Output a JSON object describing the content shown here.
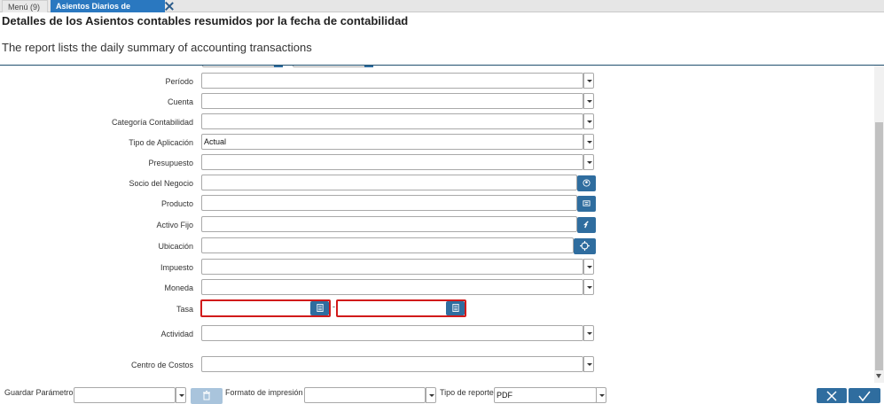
{
  "tabs": [
    {
      "label": "Menú (9)"
    },
    {
      "label": "Asientos Diarios de Contabi..."
    }
  ],
  "header": {
    "title": "Detalles de los Asientos contables resumidos por la fecha de contabilidad",
    "description": "The report lists the daily summary of accounting transactions"
  },
  "form": {
    "periodo": {
      "label": "Período",
      "value": ""
    },
    "cuenta": {
      "label": "Cuenta",
      "value": ""
    },
    "categoria": {
      "label": "Categoría Contabilidad",
      "value": ""
    },
    "tipo_aplicacion": {
      "label": "Tipo de Aplicación",
      "value": "Actual"
    },
    "presupuesto": {
      "label": "Presupuesto",
      "value": ""
    },
    "socio": {
      "label": "Socio del Negocio",
      "value": ""
    },
    "producto": {
      "label": "Producto",
      "value": ""
    },
    "activo_fijo": {
      "label": "Activo Fijo",
      "value": ""
    },
    "ubicacion": {
      "label": "Ubicación",
      "value": ""
    },
    "impuesto": {
      "label": "Impuesto",
      "value": ""
    },
    "moneda": {
      "label": "Moneda",
      "value": ""
    },
    "tasa": {
      "label": "Tasa",
      "from": "",
      "to": "",
      "separator": "-"
    },
    "actividad": {
      "label": "Actividad",
      "value": ""
    },
    "centro_costos": {
      "label": "Centro de Costos",
      "value": ""
    }
  },
  "bottom": {
    "guardar_label": "Guardar Parámetro",
    "guardar_value": "",
    "formato_label": "Formato de impresión",
    "formato_value": "",
    "tipo_label": "Tipo de reporte",
    "tipo_value": "PDF"
  },
  "icons": {
    "socio": "bpartner-icon",
    "producto": "product-icon",
    "activo": "asset-icon",
    "ubicacion": "location-icon",
    "calc": "calculator-icon",
    "trash": "trash-icon",
    "cancel": "close-icon",
    "ok": "check-icon"
  },
  "colors": {
    "accent": "#2a78c0",
    "button": "#2f6d9f",
    "error": "#d11a1a"
  }
}
